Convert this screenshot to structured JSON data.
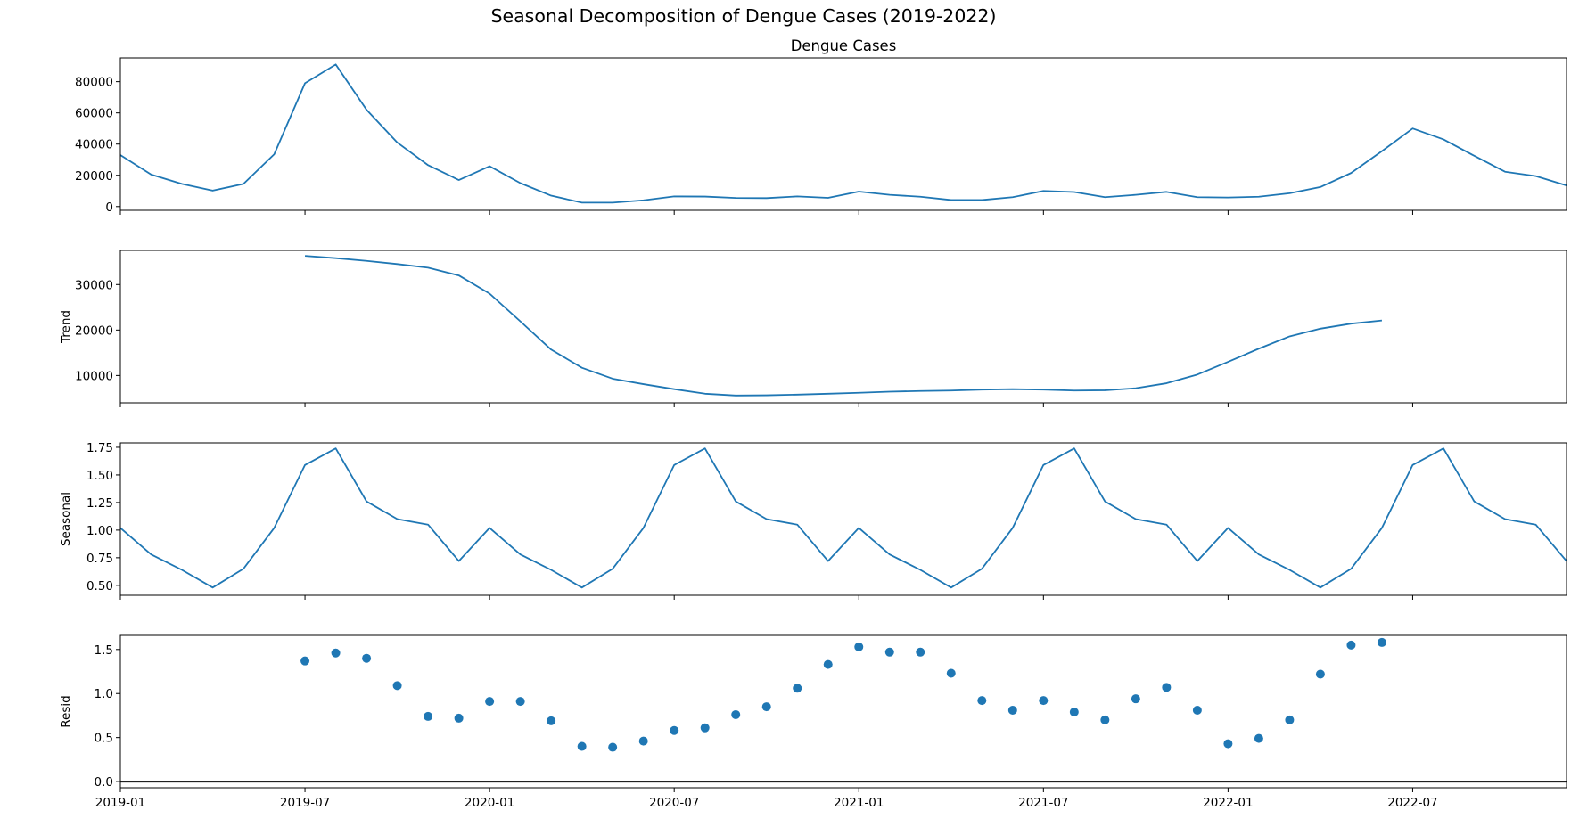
{
  "suptitle": "Seasonal Decomposition of Dengue Cases (2019-2022)",
  "colors": {
    "line": "#1f77b4",
    "axis": "#000000"
  },
  "chart_data": [
    {
      "type": "line",
      "title": "Dengue Cases",
      "ylabel": "",
      "xlabel": "",
      "ylim": [
        -2400,
        95200
      ],
      "yticks": [
        0,
        20000,
        40000,
        60000,
        80000
      ],
      "ytick_labels": [
        "0",
        "20000",
        "40000",
        "60000",
        "80000"
      ],
      "series": [
        {
          "x": [
            "2019-01",
            "2019-02",
            "2019-03",
            "2019-04",
            "2019-05",
            "2019-06",
            "2019-07",
            "2019-08",
            "2019-09",
            "2019-10",
            "2019-11",
            "2019-12",
            "2020-01",
            "2020-02",
            "2020-03",
            "2020-04",
            "2020-05",
            "2020-06",
            "2020-07",
            "2020-08",
            "2020-09",
            "2020-10",
            "2020-11",
            "2020-12",
            "2021-01",
            "2021-02",
            "2021-03",
            "2021-04",
            "2021-05",
            "2021-06",
            "2021-07",
            "2021-08",
            "2021-09",
            "2021-10",
            "2021-11",
            "2021-12",
            "2022-01",
            "2022-02",
            "2022-03",
            "2022-04",
            "2022-05",
            "2022-06",
            "2022-07",
            "2022-08",
            "2022-09",
            "2022-10",
            "2022-11",
            "2022-12"
          ],
          "values": [
            33000,
            20500,
            14500,
            10200,
            14500,
            33500,
            79000,
            91000,
            62000,
            41000,
            26500,
            17000,
            25800,
            15000,
            7000,
            2500,
            2500,
            4000,
            6500,
            6400,
            5500,
            5400,
            6500,
            5600,
            9600,
            7500,
            6300,
            4200,
            4200,
            6000,
            10000,
            9300,
            6000,
            7500,
            9400,
            6000,
            5800,
            6300,
            8500,
            12500,
            21500,
            35500,
            50000,
            43000,
            32500,
            22300,
            19500,
            13500
          ]
        }
      ]
    },
    {
      "type": "line",
      "title": "",
      "ylabel": "Trend",
      "xlabel": "",
      "ylim": [
        4000,
        37500
      ],
      "yticks": [
        10000,
        20000,
        30000
      ],
      "ytick_labels": [
        "10000",
        "20000",
        "30000"
      ],
      "series": [
        {
          "x": [
            "2019-07",
            "2019-08",
            "2019-09",
            "2019-10",
            "2019-11",
            "2019-12",
            "2020-01",
            "2020-02",
            "2020-03",
            "2020-04",
            "2020-05",
            "2020-06",
            "2020-07",
            "2020-08",
            "2020-09",
            "2020-10",
            "2020-11",
            "2020-12",
            "2021-01",
            "2021-02",
            "2021-03",
            "2021-04",
            "2021-05",
            "2021-06",
            "2021-07",
            "2021-08",
            "2021-09",
            "2021-10",
            "2021-11",
            "2021-12",
            "2022-01",
            "2022-02",
            "2022-03",
            "2022-04",
            "2022-05",
            "2022-06"
          ],
          "values": [
            36300,
            35800,
            35200,
            34500,
            33700,
            32000,
            28000,
            21900,
            15700,
            11700,
            9300,
            8100,
            7000,
            6000,
            5600,
            5650,
            5800,
            6000,
            6200,
            6450,
            6600,
            6700,
            6900,
            7000,
            6900,
            6700,
            6750,
            7200,
            8300,
            10200,
            13000,
            15900,
            18600,
            20300,
            21400,
            22100
          ]
        }
      ]
    },
    {
      "type": "line",
      "title": "",
      "ylabel": "Seasonal",
      "xlabel": "",
      "ylim": [
        0.41,
        1.79
      ],
      "yticks": [
        0.5,
        0.75,
        1.0,
        1.25,
        1.5,
        1.75
      ],
      "ytick_labels": [
        "0.50",
        "0.75",
        "1.00",
        "1.25",
        "1.50",
        "1.75"
      ],
      "series": [
        {
          "x": [
            "2019-01",
            "2019-02",
            "2019-03",
            "2019-04",
            "2019-05",
            "2019-06",
            "2019-07",
            "2019-08",
            "2019-09",
            "2019-10",
            "2019-11",
            "2019-12",
            "2020-01",
            "2020-02",
            "2020-03",
            "2020-04",
            "2020-05",
            "2020-06",
            "2020-07",
            "2020-08",
            "2020-09",
            "2020-10",
            "2020-11",
            "2020-12",
            "2021-01",
            "2021-02",
            "2021-03",
            "2021-04",
            "2021-05",
            "2021-06",
            "2021-07",
            "2021-08",
            "2021-09",
            "2021-10",
            "2021-11",
            "2021-12",
            "2022-01",
            "2022-02",
            "2022-03",
            "2022-04",
            "2022-05",
            "2022-06",
            "2022-07",
            "2022-08",
            "2022-09",
            "2022-10",
            "2022-11",
            "2022-12"
          ],
          "values": [
            1.02,
            0.78,
            0.64,
            0.48,
            0.65,
            1.02,
            1.59,
            1.74,
            1.26,
            1.1,
            1.05,
            0.72,
            1.02,
            0.78,
            0.64,
            0.48,
            0.65,
            1.02,
            1.59,
            1.74,
            1.26,
            1.1,
            1.05,
            0.72,
            1.02,
            0.78,
            0.64,
            0.48,
            0.65,
            1.02,
            1.59,
            1.74,
            1.26,
            1.1,
            1.05,
            0.72,
            1.02,
            0.78,
            0.64,
            0.48,
            0.65,
            1.02,
            1.59,
            1.74,
            1.26,
            1.1,
            1.05,
            0.72
          ]
        }
      ]
    },
    {
      "type": "scatter",
      "title": "",
      "ylabel": "Resid",
      "xlabel": "",
      "ylim": [
        -0.07,
        1.66
      ],
      "yticks": [
        0.0,
        0.5,
        1.0,
        1.5
      ],
      "ytick_labels": [
        "0.0",
        "0.5",
        "1.0",
        "1.5"
      ],
      "hline": 0,
      "series": [
        {
          "x": [
            "2019-07",
            "2019-08",
            "2019-09",
            "2019-10",
            "2019-11",
            "2019-12",
            "2020-01",
            "2020-02",
            "2020-03",
            "2020-04",
            "2020-05",
            "2020-06",
            "2020-07",
            "2020-08",
            "2020-09",
            "2020-10",
            "2020-11",
            "2020-12",
            "2021-01",
            "2021-02",
            "2021-03",
            "2021-04",
            "2021-05",
            "2021-06",
            "2021-07",
            "2021-08",
            "2021-09",
            "2021-10",
            "2021-11",
            "2021-12",
            "2022-01",
            "2022-02",
            "2022-03",
            "2022-04",
            "2022-05",
            "2022-06"
          ],
          "values": [
            1.37,
            1.46,
            1.4,
            1.09,
            0.74,
            0.72,
            0.91,
            0.91,
            0.69,
            0.4,
            0.39,
            0.46,
            0.58,
            0.61,
            0.76,
            0.85,
            1.06,
            1.33,
            1.53,
            1.47,
            1.47,
            1.23,
            0.92,
            0.81,
            0.92,
            0.79,
            0.7,
            0.94,
            1.07,
            0.81,
            0.43,
            0.49,
            0.7,
            1.22,
            1.55,
            1.58
          ]
        }
      ]
    }
  ],
  "x_axis": {
    "range": [
      "2019-01",
      "2022-12"
    ],
    "ticks": [
      "2019-01",
      "2019-07",
      "2020-01",
      "2020-07",
      "2021-01",
      "2021-07",
      "2022-01",
      "2022-07"
    ]
  }
}
